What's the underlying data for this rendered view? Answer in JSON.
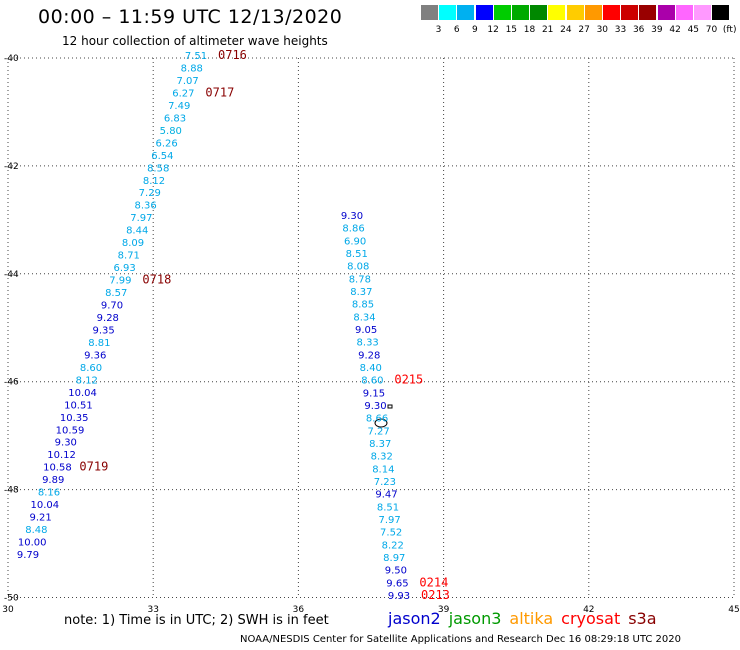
{
  "title": "00:00 – 11:59 UTC 12/13/2020",
  "subtitle": "12 hour collection of altimeter wave heights",
  "color_scale": {
    "colors": [
      "#808080",
      "#00ffff",
      "#00b0f0",
      "#0000ff",
      "#00cc00",
      "#00aa00",
      "#008800",
      "#ffff00",
      "#ffcc00",
      "#ff9900",
      "#ff0000",
      "#cc0000",
      "#990000",
      "#aa00aa",
      "#ff66ff",
      "#ff99ff",
      "#000000"
    ],
    "labels": [
      "3",
      "6",
      "9",
      "12",
      "15",
      "18",
      "21",
      "24",
      "27",
      "30",
      "33",
      "36",
      "39",
      "42",
      "45",
      "70",
      "(ft)"
    ]
  },
  "axes": {
    "lat_ticks": [
      "-40",
      "-42",
      "-44",
      "-46",
      "-48",
      "-50"
    ],
    "lon_ticks": [
      "30",
      "33",
      "36",
      "39",
      "42",
      "45"
    ]
  },
  "note": "note: 1) Time is in UTC; 2) SWH is in feet",
  "legend": [
    {
      "name": "jason2",
      "color": "#0000cc"
    },
    {
      "name": "jason3",
      "color": "#009900"
    },
    {
      "name": "altika",
      "color": "#ff9900"
    },
    {
      "name": "cryosat",
      "color": "#ff0000"
    },
    {
      "name": "s3a",
      "color": "#880000"
    }
  ],
  "credit": "NOAA/NESDIS Center for Satellite Applications and Research    Dec 16 08:29:18 UTC 2020",
  "track_west": {
    "values": [
      "7.51",
      "8.88",
      "7.07",
      "6.27",
      "7.49",
      "6.83",
      "5.80",
      "6.26",
      "6.54",
      "8.58",
      "8.12",
      "7.29",
      "8.36",
      "7.97",
      "8.44",
      "8.09",
      "8.71",
      "6.93",
      "7.99",
      "8.57",
      "9.70",
      "9.28",
      "9.35",
      "8.81",
      "9.36",
      "8.60",
      "8.12",
      "10.04",
      "10.51",
      "10.35",
      "10.59",
      "9.30",
      "10.12",
      "10.58",
      "9.89",
      "8.16",
      "10.04",
      "9.21",
      "8.48",
      "10.00",
      "9.79"
    ],
    "times": [
      {
        "label": "0716",
        "index": 0,
        "color": "#880000"
      },
      {
        "label": "0717",
        "index": 3,
        "color": "#880000"
      },
      {
        "label": "0718",
        "index": 18,
        "color": "#880000"
      },
      {
        "label": "0719",
        "index": 33,
        "color": "#880000"
      }
    ]
  },
  "track_east": {
    "values": [
      "9.30",
      "8.86",
      "6.90",
      "8.51",
      "8.08",
      "8.78",
      "8.37",
      "8.85",
      "8.34",
      "9.05",
      "8.33",
      "9.28",
      "8.40",
      "8.60",
      "9.15",
      "9.30",
      "8.66",
      "7.27",
      "8.37",
      "8.32",
      "8.14",
      "7.23",
      "9.47",
      "8.51",
      "7.97",
      "7.52",
      "8.22",
      "8.97",
      "9.50",
      "9.65",
      "9.93"
    ],
    "times": [
      {
        "label": "0215",
        "index": 13,
        "color": "#ff0000"
      },
      {
        "label": "0214",
        "index": 29,
        "color": "#ff0000"
      },
      {
        "label": "0213",
        "index": 30,
        "color": "#ff0000"
      }
    ]
  }
}
